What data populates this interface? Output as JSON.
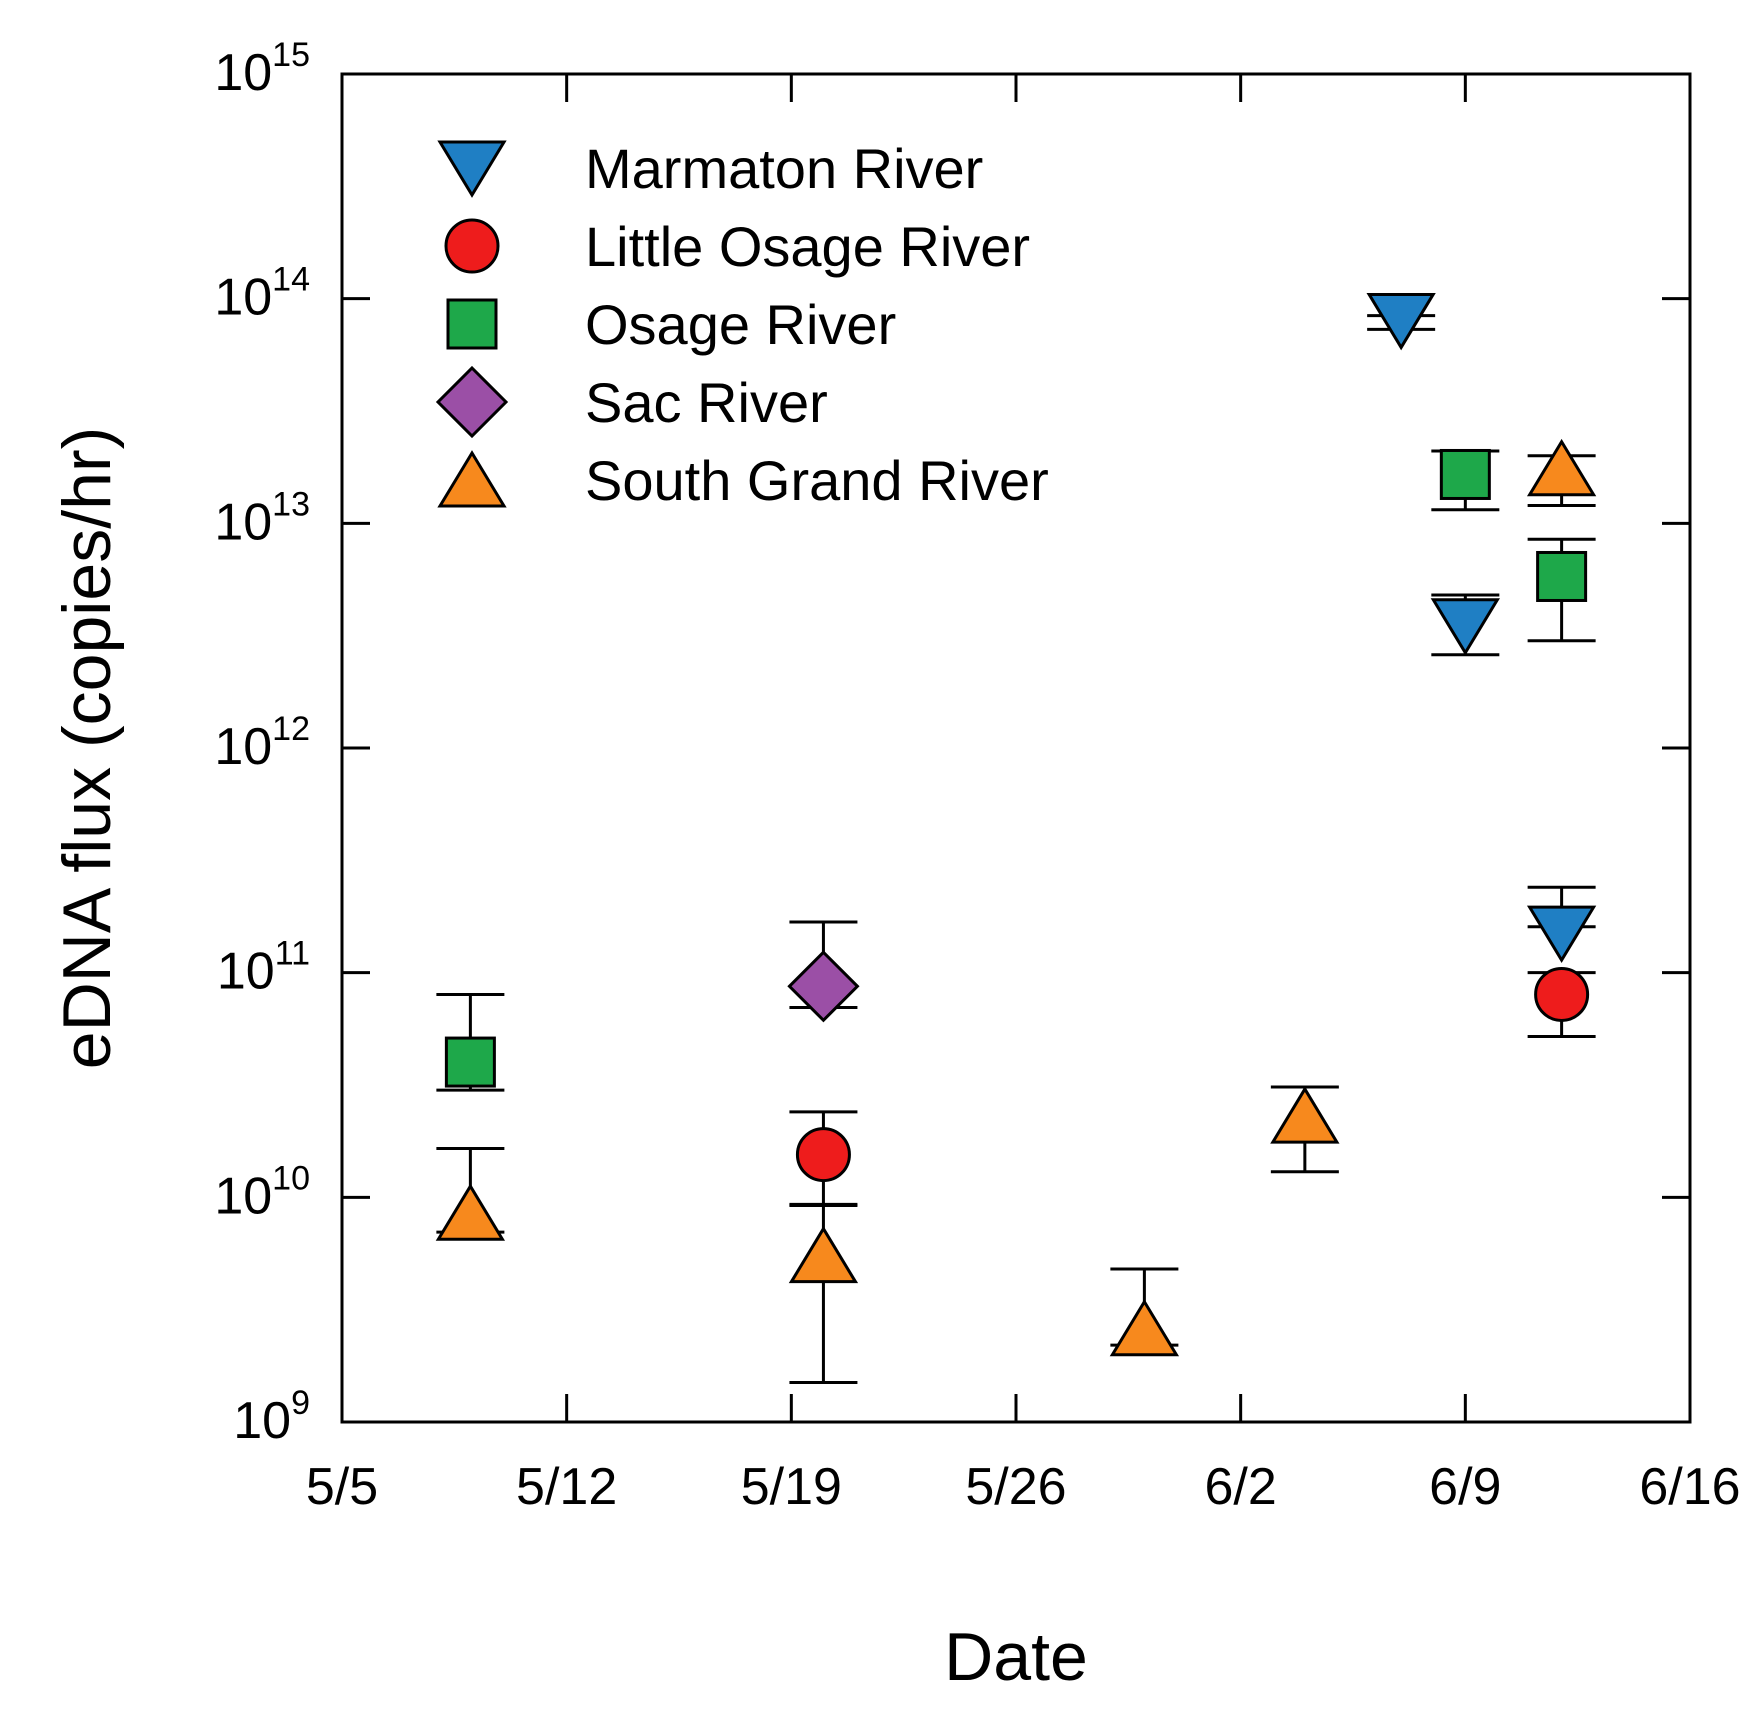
{
  "chart_data": {
    "type": "scatter",
    "title": "",
    "xlabel": "Date",
    "ylabel": "eDNA flux (copies/hr)",
    "x_scale": "date",
    "y_scale": "log",
    "x_range_days": [
      0,
      42
    ],
    "x_ticks": [
      {
        "day": 0,
        "label": "5/5"
      },
      {
        "day": 7,
        "label": "5/12"
      },
      {
        "day": 14,
        "label": "5/19"
      },
      {
        "day": 21,
        "label": "5/26"
      },
      {
        "day": 28,
        "label": "6/2"
      },
      {
        "day": 35,
        "label": "6/9"
      },
      {
        "day": 42,
        "label": "6/16"
      }
    ],
    "y_range_log10": [
      9,
      15
    ],
    "y_ticks": [
      {
        "exp": 9,
        "base": "10",
        "sup": "9"
      },
      {
        "exp": 10,
        "base": "10",
        "sup": "10"
      },
      {
        "exp": 11,
        "base": "10",
        "sup": "11"
      },
      {
        "exp": 12,
        "base": "10",
        "sup": "12"
      },
      {
        "exp": 13,
        "base": "10",
        "sup": "13"
      },
      {
        "exp": 14,
        "base": "10",
        "sup": "14"
      },
      {
        "exp": 15,
        "base": "10",
        "sup": "15"
      }
    ],
    "legend_position": "top-left",
    "series": [
      {
        "name": "Marmaton River",
        "marker": "triangle-down",
        "color": "#1f7fc4",
        "points": [
          {
            "date": "6/7",
            "day": 33,
            "y": 80000000000000.0,
            "err_low": 73000000000000.0,
            "err_high": 84000000000000.0
          },
          {
            "date": "6/9",
            "day": 35,
            "y": 3500000000000.0,
            "err_low": 2600000000000.0,
            "err_high": 4800000000000.0
          },
          {
            "date": "6/12",
            "day": 38,
            "y": 150000000000.0,
            "err_low": 160000000000.0,
            "err_high": 240000000000.0
          }
        ]
      },
      {
        "name": "Little Osage River",
        "marker": "circle",
        "color": "#ee1c1c",
        "points": [
          {
            "date": "5/20",
            "day": 15,
            "y": 15500000000.0,
            "err_low": 9300000000.0,
            "err_high": 24000000000.0
          },
          {
            "date": "6/12",
            "day": 38,
            "y": 80000000000.0,
            "err_low": 52000000000.0,
            "err_high": 100000000000.0
          }
        ]
      },
      {
        "name": "Osage River",
        "marker": "square",
        "color": "#1ea84a",
        "points": [
          {
            "date": "5/9",
            "day": 4,
            "y": 40000000000.0,
            "err_low": 30000000000.0,
            "err_high": 80000000000.0
          },
          {
            "date": "6/9",
            "day": 35,
            "y": 16500000000000.0,
            "err_low": 11500000000000.0,
            "err_high": 21000000000000.0
          },
          {
            "date": "6/12",
            "day": 38,
            "y": 5800000000000.0,
            "err_low": 3000000000000.0,
            "err_high": 8500000000000.0
          }
        ]
      },
      {
        "name": "Sac River",
        "marker": "diamond",
        "color": "#9b4fa6",
        "points": [
          {
            "date": "5/20",
            "day": 15,
            "y": 87000000000.0,
            "err_low": 70000000000.0,
            "err_high": 168000000000.0
          }
        ]
      },
      {
        "name": "South Grand River",
        "marker": "triangle-up",
        "color": "#f7891d",
        "points": [
          {
            "date": "5/9",
            "day": 4,
            "y": 8500000000.0,
            "err_low": 7000000000.0,
            "err_high": 16500000000.0
          },
          {
            "date": "5/20",
            "day": 15,
            "y": 5500000000.0,
            "err_low": 1500000000.0,
            "err_high": 9200000000.0
          },
          {
            "date": "5/30",
            "day": 25,
            "y": 2600000000.0,
            "err_low": 2200000000.0,
            "err_high": 4800000000.0
          },
          {
            "date": "6/4",
            "day": 30,
            "y": 23000000000.0,
            "err_low": 13000000000.0,
            "err_high": 31000000000.0
          },
          {
            "date": "6/12",
            "day": 38,
            "y": 17500000000000.0,
            "err_low": 12000000000000.0,
            "err_high": 20000000000000.0
          }
        ]
      }
    ]
  }
}
